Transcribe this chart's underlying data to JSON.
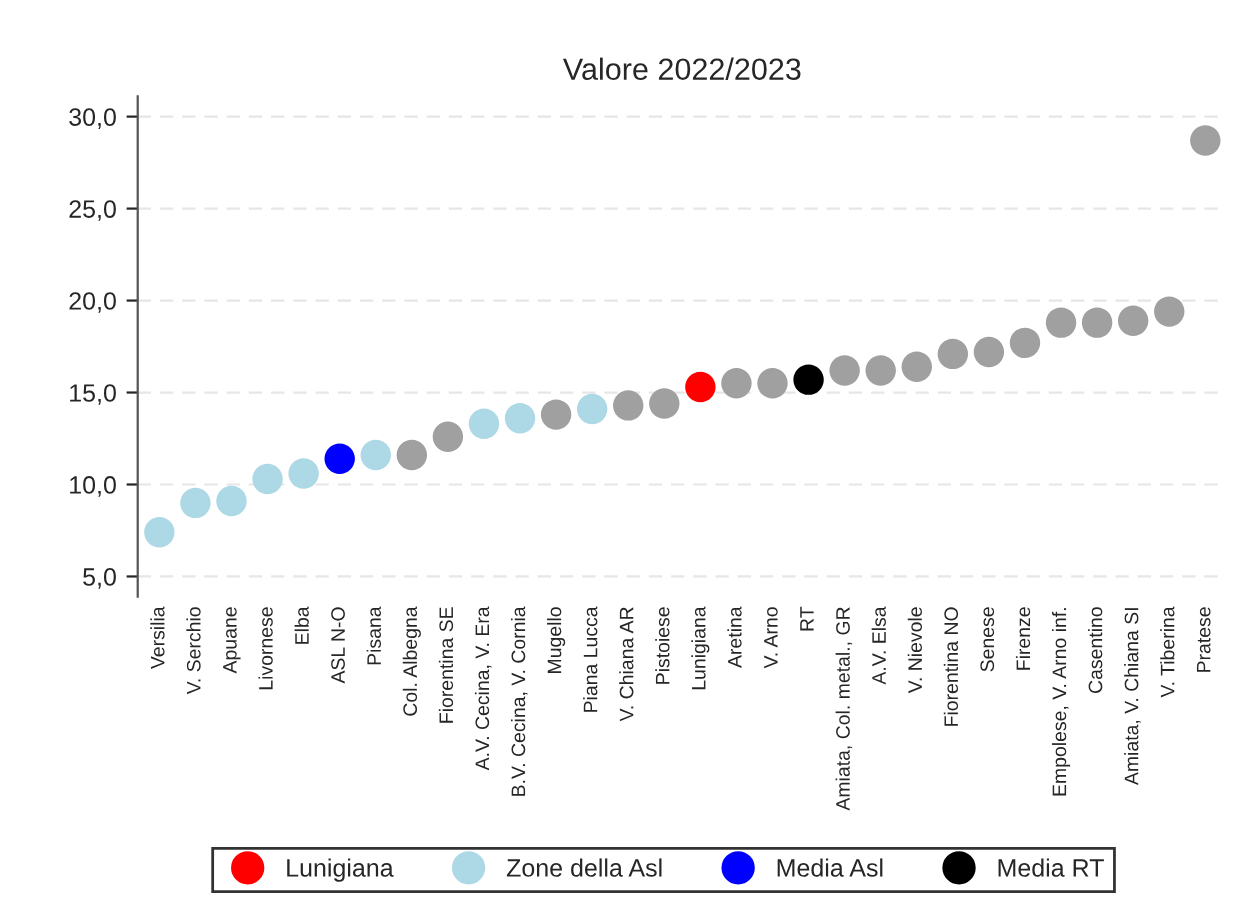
{
  "chart_data": {
    "type": "scatter",
    "title": "Valore 2022/2023",
    "categories": [
      "Versilia",
      "V. Serchio",
      "Apuane",
      "Livornese",
      "Elba",
      "ASL N-O",
      "Pisana",
      "Col. Albegna",
      "Fiorentina SE",
      "A.V. Cecina, V. Era",
      "B.V. Cecina, V. Cornia",
      "Mugello",
      "Piana Lucca",
      "V. Chiana AR",
      "Pistoiese",
      "Lunigiana",
      "Aretina",
      "V. Arno",
      "RT",
      "Amiata, Col. metal., GR",
      "A.V. Elsa",
      "V. Nievole",
      "Fiorentina NO",
      "Senese",
      "Firenze",
      "Empolese, V. Arno inf.",
      "Casentino",
      "Amiata, V. Chiana SI",
      "V. Tiberina",
      "Pratese"
    ],
    "series": [
      {
        "color": "#a0a0a0",
        "values": [
          null,
          null,
          null,
          null,
          null,
          null,
          null,
          11.6,
          12.6,
          null,
          null,
          13.8,
          null,
          14.3,
          14.4,
          null,
          15.5,
          15.5,
          null,
          16.2,
          16.2,
          16.4,
          17.1,
          17.2,
          17.7,
          18.8,
          18.8,
          18.9,
          19.4,
          28.7
        ]
      },
      {
        "name": "Lunigiana",
        "color": "#ff0000",
        "values": [
          null,
          null,
          null,
          null,
          null,
          null,
          null,
          null,
          null,
          null,
          null,
          null,
          null,
          null,
          null,
          15.3,
          null,
          null,
          null,
          null,
          null,
          null,
          null,
          null,
          null,
          null,
          null,
          null,
          null,
          null
        ]
      },
      {
        "name": "Zone della Asl",
        "color": "#add8e6",
        "values": [
          7.4,
          9.0,
          9.1,
          10.3,
          10.6,
          null,
          11.6,
          null,
          null,
          13.3,
          13.6,
          null,
          14.1,
          null,
          null,
          null,
          null,
          null,
          null,
          null,
          null,
          null,
          null,
          null,
          null,
          null,
          null,
          null,
          null,
          null
        ]
      },
      {
        "name": "Media Asl",
        "color": "#0000ff",
        "values": [
          null,
          null,
          null,
          null,
          null,
          11.4,
          null,
          null,
          null,
          null,
          null,
          null,
          null,
          null,
          null,
          null,
          null,
          null,
          null,
          null,
          null,
          null,
          null,
          null,
          null,
          null,
          null,
          null,
          null,
          null
        ]
      },
      {
        "name": "Media RT",
        "color": "#000000",
        "values": [
          null,
          null,
          null,
          null,
          null,
          null,
          null,
          null,
          null,
          null,
          null,
          null,
          null,
          null,
          null,
          null,
          null,
          null,
          15.7,
          null,
          null,
          null,
          null,
          null,
          null,
          null,
          null,
          null,
          null,
          null
        ]
      }
    ],
    "ylim": [
      3.9,
      31.1
    ],
    "yticks": [
      {
        "value": 5,
        "label": "5,0"
      },
      {
        "value": 10,
        "label": "10,0"
      },
      {
        "value": 15,
        "label": "15,0"
      },
      {
        "value": 20,
        "label": "20,0"
      },
      {
        "value": 25,
        "label": "25,0"
      },
      {
        "value": 30,
        "label": "30,0"
      }
    ],
    "grid": "y",
    "legend": "bottom",
    "marker": "circle"
  }
}
